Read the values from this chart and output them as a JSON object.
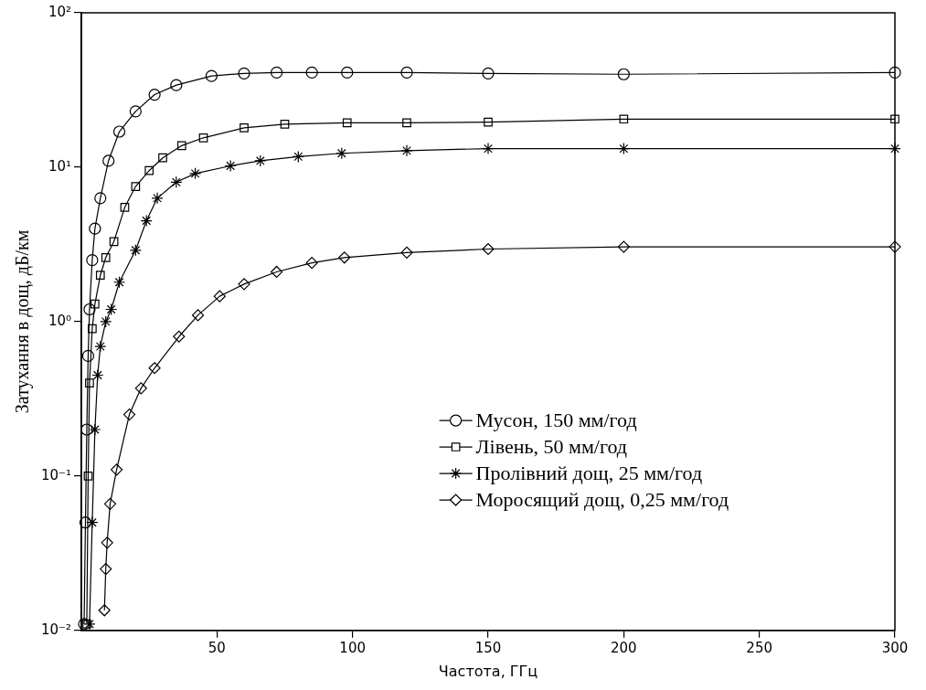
{
  "chart_data": {
    "type": "line",
    "xlabel": "Частота, ГГц",
    "ylabel": "Затухання в дощ, дБ/км",
    "log": "y",
    "grid": false,
    "legend": "right",
    "line_style": "solid",
    "xlim": [
      0,
      300
    ],
    "xticks": [
      50,
      100,
      150,
      200,
      250,
      300
    ],
    "ylim": [
      0.01,
      100
    ],
    "yticks": [
      {
        "value": 0.01,
        "label": "10⁻²"
      },
      {
        "value": 0.1,
        "label": "10⁻¹"
      },
      {
        "value": 1,
        "label": "10⁰"
      },
      {
        "value": 10,
        "label": "10¹"
      },
      {
        "value": 100,
        "label": "10²"
      }
    ],
    "series": [
      {
        "name": "Мусон, 150 мм/год",
        "color": "#000000",
        "marker": "circle",
        "x": [
          1,
          1.5,
          2,
          2.5,
          3,
          4,
          5,
          7,
          10,
          14,
          20,
          27,
          35,
          48,
          60,
          72,
          85,
          98,
          120,
          150,
          200,
          300
        ],
        "values": [
          0.011,
          0.05,
          0.2,
          0.6,
          1.2,
          2.5,
          4,
          6.3,
          11,
          17,
          23,
          29.5,
          34,
          39,
          40.5,
          41,
          41,
          41,
          41,
          40.5,
          40,
          41
        ]
      },
      {
        "name": "Лівень, 50 мм/год",
        "color": "#000000",
        "marker": "square",
        "x": [
          2,
          2.5,
          3,
          4,
          5,
          7,
          9,
          12,
          16,
          20,
          25,
          30,
          37,
          45,
          60,
          75,
          98,
          120,
          150,
          200,
          300
        ],
        "values": [
          0.011,
          0.1,
          0.4,
          0.9,
          1.3,
          2,
          2.6,
          3.3,
          5.5,
          7.5,
          9.5,
          11.5,
          13.8,
          15.5,
          18,
          19,
          19.4,
          19.4,
          19.6,
          20.5,
          20.5
        ]
      },
      {
        "name": "Пролівний дощ, 25 мм/год",
        "color": "#000000",
        "marker": "cross",
        "x": [
          3,
          4,
          5,
          6,
          7,
          9,
          11,
          14,
          20,
          24,
          28,
          35,
          42,
          55,
          66,
          80,
          96,
          120,
          150,
          200,
          300
        ],
        "values": [
          0.011,
          0.05,
          0.2,
          0.45,
          0.69,
          1,
          1.2,
          1.8,
          2.9,
          4.5,
          6.3,
          8,
          9.1,
          10.2,
          11,
          11.7,
          12.3,
          12.8,
          13.2,
          13.2,
          13.2
        ]
      },
      {
        "name": "Моросящий дощ, 0,25 мм/год",
        "color": "#000000",
        "marker": "diamond",
        "x": [
          8.5,
          9,
          9.5,
          10.6,
          13,
          17.7,
          22,
          27,
          36,
          43,
          51,
          60,
          72,
          85,
          97,
          120,
          150,
          200,
          300
        ],
        "values": [
          0.0135,
          0.025,
          0.037,
          0.066,
          0.11,
          0.25,
          0.37,
          0.5,
          0.8,
          1.1,
          1.46,
          1.75,
          2.1,
          2.4,
          2.6,
          2.8,
          2.95,
          3.05,
          3.05
        ]
      }
    ]
  }
}
